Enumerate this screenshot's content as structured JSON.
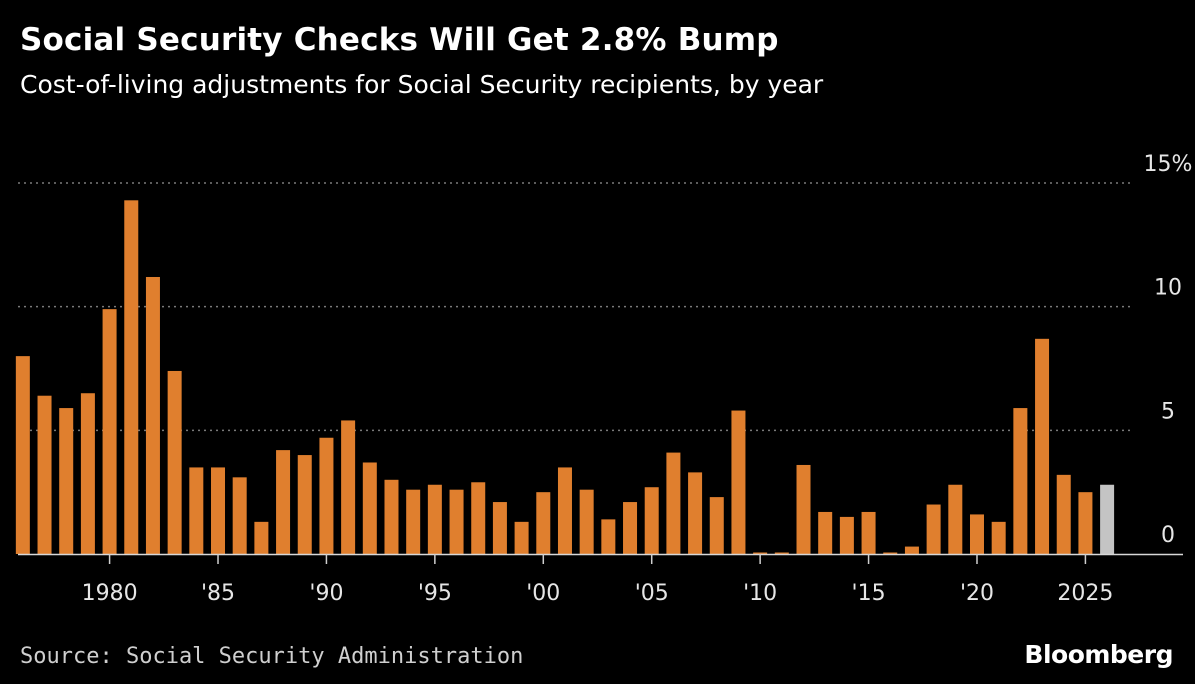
{
  "header": {
    "title": "Social Security Checks Will Get 2.8% Bump",
    "subtitle": "Cost-of-living adjustments for Social Security recipients, by year"
  },
  "footer": {
    "source": "Source: Social Security Administration",
    "logo": "Bloomberg"
  },
  "colors": {
    "background": "#000000",
    "bar": "#e07f2e",
    "highlight_bar": "#c4c4c4",
    "grid": "#7a7a7a",
    "axis": "#cfcfcf"
  },
  "chart_data": {
    "type": "bar",
    "x": [
      1976,
      1977,
      1978,
      1979,
      1980,
      1981,
      1982,
      1983,
      1984,
      1985,
      1986,
      1987,
      1988,
      1989,
      1990,
      1991,
      1992,
      1993,
      1994,
      1995,
      1996,
      1997,
      1998,
      1999,
      2000,
      2001,
      2002,
      2003,
      2004,
      2005,
      2006,
      2007,
      2008,
      2009,
      2010,
      2011,
      2012,
      2013,
      2014,
      2015,
      2016,
      2017,
      2018,
      2019,
      2020,
      2021,
      2022,
      2023,
      2024,
      2025,
      2026
    ],
    "values": [
      8.0,
      6.4,
      5.9,
      6.5,
      9.9,
      14.3,
      11.2,
      7.4,
      3.5,
      3.5,
      3.1,
      1.3,
      4.2,
      4.0,
      4.7,
      5.4,
      3.7,
      3.0,
      2.6,
      2.8,
      2.6,
      2.9,
      2.1,
      1.3,
      2.5,
      3.5,
      2.6,
      1.4,
      2.1,
      2.7,
      4.1,
      3.3,
      2.3,
      5.8,
      0.0,
      0.0,
      3.6,
      1.7,
      1.5,
      1.7,
      0.0,
      0.3,
      2.0,
      2.8,
      1.6,
      1.3,
      5.9,
      8.7,
      3.2,
      2.5,
      2.8
    ],
    "highlight_index": 50,
    "x_tick_labels": [
      {
        "x": 1980,
        "label": "1980"
      },
      {
        "x": 1985,
        "label": "'85"
      },
      {
        "x": 1990,
        "label": "'90"
      },
      {
        "x": 1995,
        "label": "'95"
      },
      {
        "x": 2000,
        "label": "'00"
      },
      {
        "x": 2005,
        "label": "'05"
      },
      {
        "x": 2010,
        "label": "'10"
      },
      {
        "x": 2015,
        "label": "'15"
      },
      {
        "x": 2020,
        "label": "'20"
      },
      {
        "x": 2025,
        "label": "2025"
      }
    ],
    "y_ticks": [
      {
        "value": 15,
        "label": "15%"
      },
      {
        "value": 10,
        "label": "10"
      },
      {
        "value": 5,
        "label": "5"
      },
      {
        "value": 0,
        "label": "0"
      }
    ],
    "ylim": [
      0,
      15
    ],
    "xlim": [
      1975.5,
      2029.5
    ],
    "grid": true,
    "y_axis_side": "right",
    "legend": "none"
  }
}
